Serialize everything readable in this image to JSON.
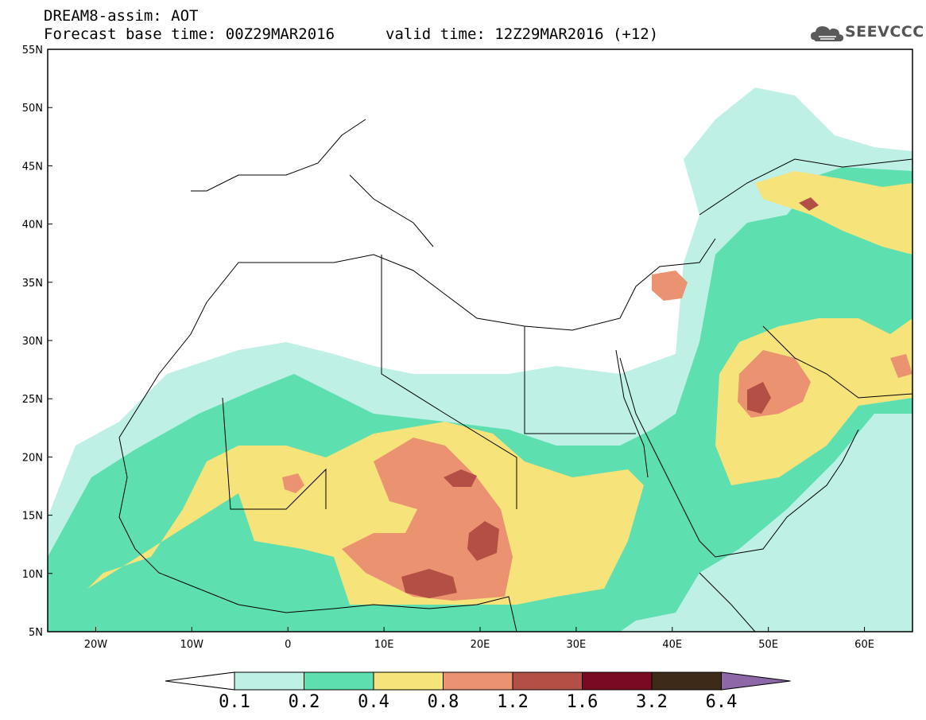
{
  "header": {
    "model_title": "DREAM8-assim: AOT",
    "base_time": "Forecast base time: 00Z29MAR2016",
    "valid_time": "valid time: 12Z29MAR2016 (+12)",
    "logo_text": "SEEVCCC"
  },
  "axes": {
    "lat_labels": [
      "55N",
      "50N",
      "45N",
      "40N",
      "35N",
      "30N",
      "25N",
      "20N",
      "15N",
      "10N",
      "5N"
    ],
    "lon_labels": [
      "20W",
      "10W",
      "0",
      "10E",
      "20E",
      "30E",
      "40E",
      "50E",
      "60E"
    ],
    "lon_range": [
      -25,
      65
    ],
    "lat_range": [
      5,
      55
    ]
  },
  "colorbar": {
    "levels": [
      "0.1",
      "0.2",
      "0.4",
      "0.8",
      "1.2",
      "1.6",
      "3.2",
      "6.4"
    ],
    "colors": [
      "#bff0e6",
      "#5ddfb0",
      "#f6e37a",
      "#eb9271",
      "#b34f45",
      "#7a0a23",
      "#3e2a18",
      "#8d67a8"
    ]
  }
}
